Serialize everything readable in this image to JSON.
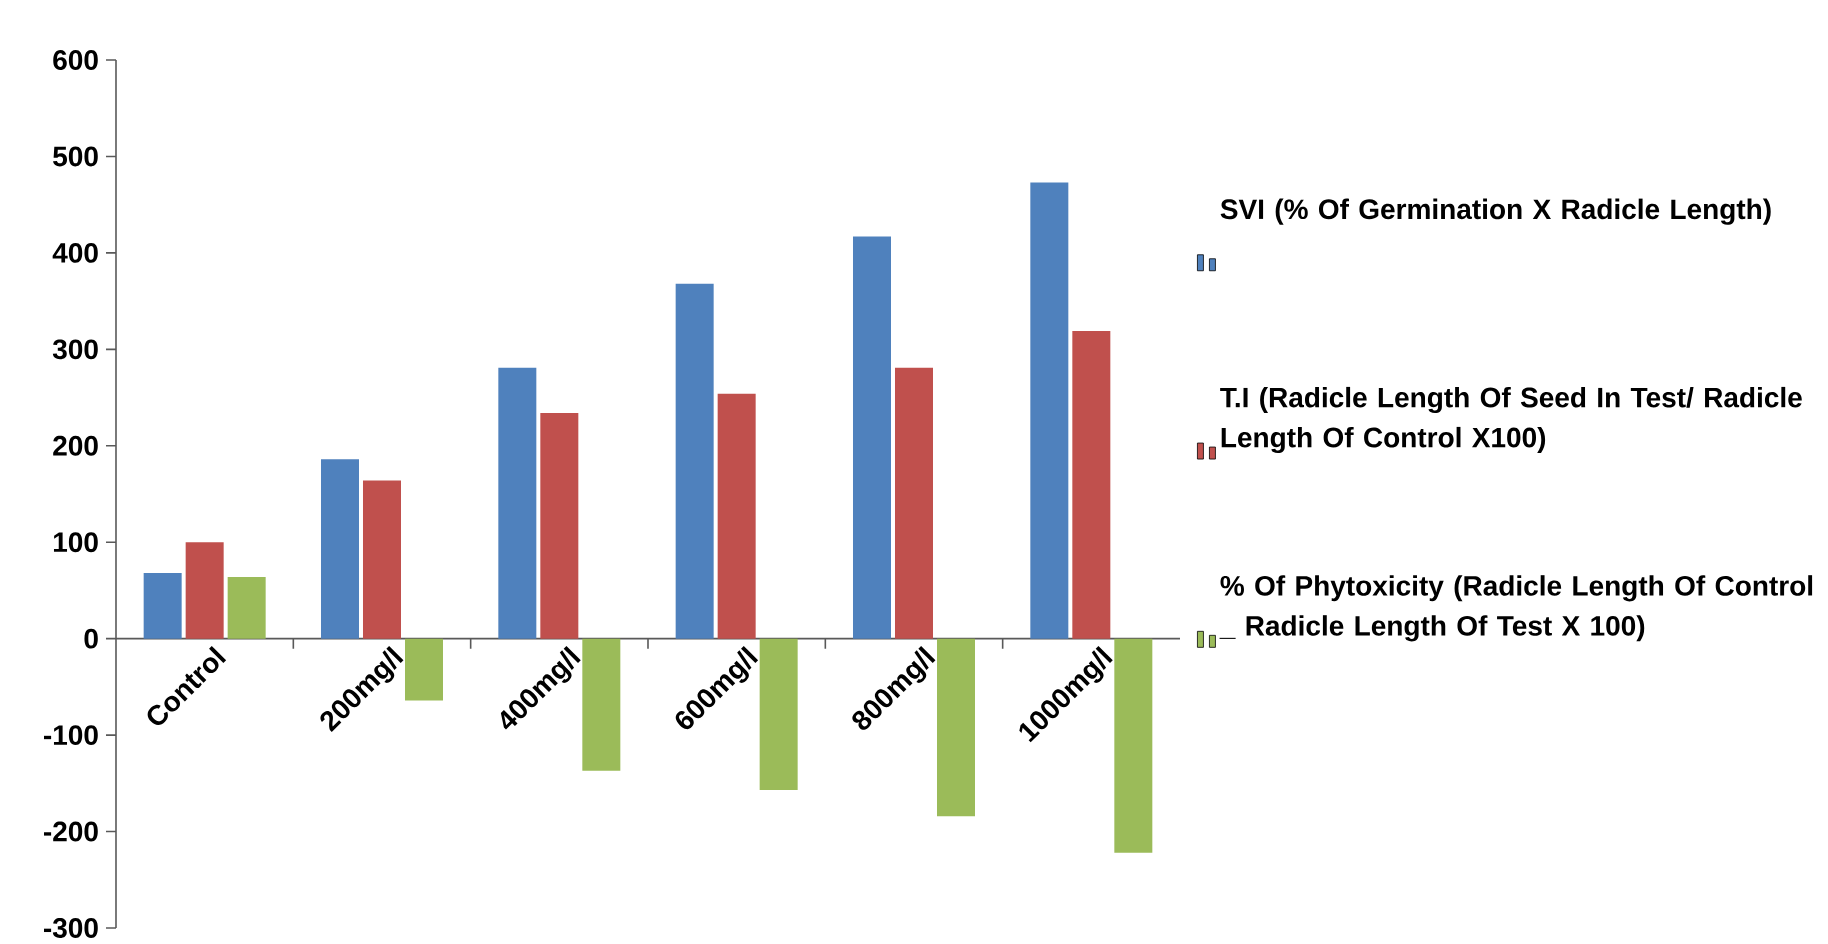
{
  "chart_data": {
    "type": "bar",
    "categories": [
      "Control",
      "200mg/l",
      "400mg/l",
      "600mg/l",
      "800mg/l",
      "1000mg/l"
    ],
    "series": [
      {
        "name": "SVI (% Of Germination X Radicle Length)",
        "color": "#4f81bd",
        "values": [
          68,
          186,
          281,
          368,
          417,
          473
        ]
      },
      {
        "name": "T.I (Radicle Length Of Seed In Test/ Radicle Length Of Control X100)",
        "color": "#c0504d",
        "values": [
          100,
          164,
          234,
          254,
          281,
          319
        ]
      },
      {
        "name": "% Of Phytoxicity (Radicle Length Of Control _ Radicle Length Of Test X 100)",
        "color": "#9bbb59",
        "values": [
          64,
          -64,
          -137,
          -157,
          -184,
          -222
        ]
      }
    ],
    "ylim": [
      -300,
      600
    ],
    "yticks": [
      -300,
      -200,
      -100,
      0,
      100,
      200,
      300,
      400,
      500,
      600
    ],
    "legend": "right"
  }
}
